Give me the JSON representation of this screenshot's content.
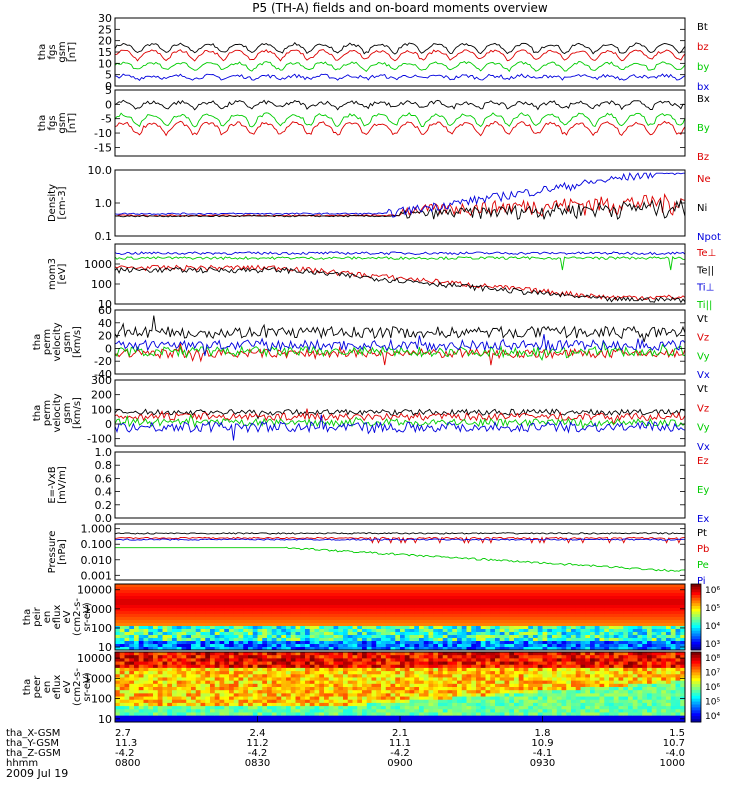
{
  "figure": {
    "title": "P5 (TH-A) fields and on-board moments overview",
    "date": "2009 Jul 19"
  },
  "colors": {
    "black": "#000000",
    "red": "#dd0000",
    "green": "#00cc00",
    "blue": "#0000dd"
  },
  "chart_data": [
    {
      "type": "line",
      "id": "fgs_mag",
      "ylabel": [
        "tha",
        "fgs",
        "gsm",
        "[nT]"
      ],
      "ylim": [
        0,
        30
      ],
      "yticks": [
        "30",
        "25",
        "20",
        "15",
        "10",
        "5",
        "0"
      ],
      "legend": [
        "Bt",
        "bz",
        "by",
        "bx"
      ],
      "series": [
        {
          "name": "Bt",
          "color": "black",
          "mean": 17,
          "amp": 3,
          "noise": 0.6
        },
        {
          "name": "bz",
          "color": "red",
          "mean": 14,
          "amp": 3,
          "noise": 0.6
        },
        {
          "name": "by",
          "color": "green",
          "mean": 9,
          "amp": 2.5,
          "noise": 0.6
        },
        {
          "name": "bx",
          "color": "blue",
          "mean": 4,
          "amp": 1,
          "noise": 0.8
        }
      ]
    },
    {
      "type": "line",
      "id": "fgs_comp",
      "ylabel": [
        "tha",
        "fgs",
        "gsm",
        "[nT]"
      ],
      "ylim": [
        -18,
        5
      ],
      "yticks": [
        "5",
        "0",
        "-5",
        "-10",
        "-15"
      ],
      "legend": [
        "Bx",
        "By",
        "Bz"
      ],
      "series": [
        {
          "name": "Bx",
          "color": "black",
          "mean": 0,
          "amp": 1.5,
          "noise": 0.7
        },
        {
          "name": "By",
          "color": "green",
          "mean": -5,
          "amp": 3,
          "noise": 0.6
        },
        {
          "name": "Bz",
          "color": "red",
          "mean": -8,
          "amp": 3,
          "noise": 0.6
        }
      ]
    },
    {
      "type": "line",
      "id": "density",
      "yscale": "log",
      "ylabel": [
        "Density",
        "[cm-3]"
      ],
      "ylim": [
        0.1,
        10
      ],
      "yticks": [
        "10.0",
        "1.0",
        "0.1"
      ],
      "legend": [
        "Ne",
        "Ni",
        "Npot"
      ],
      "series": [
        {
          "name": "Ne",
          "color": "red"
        },
        {
          "name": "Ni",
          "color": "black"
        },
        {
          "name": "Npot",
          "color": "blue"
        }
      ]
    },
    {
      "type": "line",
      "id": "temperature",
      "yscale": "log",
      "ylabel": [
        "mom3",
        "[eV]"
      ],
      "ylim": [
        10,
        10000
      ],
      "yticks": [
        "1000",
        "100",
        "10"
      ],
      "legend": [
        "Te⊥",
        "Te||",
        "Ti⊥",
        "Ti||"
      ],
      "series": [
        {
          "name": "Ti⊥",
          "color": "blue",
          "level": 3500
        },
        {
          "name": "Ti||",
          "color": "green",
          "level": 2000
        },
        {
          "name": "Te⊥",
          "color": "red"
        },
        {
          "name": "Te||",
          "color": "black"
        }
      ]
    },
    {
      "type": "line",
      "id": "velocity_perp",
      "ylabel": [
        "tha",
        "perm",
        "velocity",
        "gsm",
        "[km/s]"
      ],
      "ylim": [
        -40,
        60
      ],
      "yticks": [
        "60",
        "40",
        "20",
        "0",
        "-20",
        "-40"
      ],
      "legend": [
        "Vt",
        "Vz",
        "Vy",
        "Vx"
      ],
      "series": [
        {
          "name": "Vt",
          "color": "black",
          "mean": 25,
          "noise": 9
        },
        {
          "name": "Vz",
          "color": "red",
          "mean": -8,
          "noise": 7
        },
        {
          "name": "Vy",
          "color": "green",
          "mean": -5,
          "noise": 8
        },
        {
          "name": "Vx",
          "color": "blue",
          "mean": 5,
          "noise": 8
        }
      ]
    },
    {
      "type": "line",
      "id": "velocity_perm",
      "ylabel": [
        "tha",
        "perm",
        "velocity",
        "gsm",
        "[km/s]"
      ],
      "ylim": [
        -150,
        300
      ],
      "yticks": [
        "300",
        "200",
        "100",
        "0",
        "-100"
      ],
      "legend": [
        "Vt",
        "Vz",
        "Vy",
        "Vx"
      ],
      "series": [
        {
          "name": "Vt",
          "color": "black",
          "mean": 80,
          "noise": 20
        },
        {
          "name": "Vz",
          "color": "red",
          "mean": 50,
          "noise": 25
        },
        {
          "name": "Vy",
          "color": "green",
          "mean": 10,
          "noise": 25
        },
        {
          "name": "Vx",
          "color": "blue",
          "mean": -20,
          "noise": 35
        }
      ]
    },
    {
      "type": "line",
      "id": "efield",
      "ylabel": [
        "E=-VxB",
        "[mV/m]"
      ],
      "ylim": [
        0,
        1
      ],
      "yticks": [
        "1.0",
        "0.8",
        "0.6",
        "0.4",
        "0.2",
        "0.0"
      ],
      "legend": [
        "Ez",
        "Ey",
        "Ex"
      ],
      "series": []
    },
    {
      "type": "line",
      "id": "pressure",
      "yscale": "log",
      "ylabel": [
        "Pressure",
        "[nPa]"
      ],
      "ylim": [
        0.0005,
        2
      ],
      "yticks": [
        "1.000",
        "0.100",
        "0.010",
        "0.001"
      ],
      "legend": [
        "Pt",
        "Pb",
        "Pe",
        "Pi"
      ],
      "series": [
        {
          "name": "Pt",
          "color": "black",
          "level": 0.5
        },
        {
          "name": "Pb",
          "color": "red",
          "level": 0.25
        },
        {
          "name": "Pi",
          "color": "blue",
          "level": 0.2
        },
        {
          "name": "Pe",
          "color": "green"
        }
      ]
    },
    {
      "type": "heatmap",
      "id": "ion_spectrogram",
      "yscale": "log",
      "ylabel": [
        "tha",
        "peir",
        "en",
        "eflux",
        "eV",
        "(cm2-s-",
        "sr-eV)"
      ],
      "ylim": [
        7,
        20000
      ],
      "yticks": [
        "10000",
        "1000",
        "100",
        "10"
      ],
      "colorbar": {
        "min_exp": 3,
        "max_exp": 6,
        "labels": [
          "10⁶",
          "10⁵",
          "10⁴",
          "10³"
        ]
      }
    },
    {
      "type": "heatmap",
      "id": "electron_spectrogram",
      "yscale": "log",
      "ylabel": [
        "tha",
        "peer",
        "en",
        "eflux",
        "eV",
        "(cm2-s-",
        "sr-eV)"
      ],
      "ylim": [
        7,
        20000
      ],
      "yticks": [
        "10000",
        "1000",
        "100",
        "10"
      ],
      "colorbar": {
        "min_exp": 4,
        "max_exp": 8,
        "labels": [
          "10⁸",
          "10⁷",
          "10⁶",
          "10⁵",
          "10⁴"
        ]
      }
    }
  ],
  "x_axis": {
    "row_labels": [
      "tha_X-GSM",
      "tha_Y-GSM",
      "tha_Z-GSM",
      "hhmm"
    ],
    "ticks": [
      {
        "values": [
          "2.7",
          "11.3",
          "-4.2",
          "0800"
        ]
      },
      {
        "values": [
          "2.4",
          "11.2",
          "-4.2",
          "0830"
        ]
      },
      {
        "values": [
          "2.1",
          "11.1",
          "-4.2",
          "0900"
        ]
      },
      {
        "values": [
          "1.8",
          "10.9",
          "-4.1",
          "0930"
        ]
      },
      {
        "values": [
          "1.5",
          "10.7",
          "-4.0",
          "1000"
        ]
      }
    ]
  }
}
